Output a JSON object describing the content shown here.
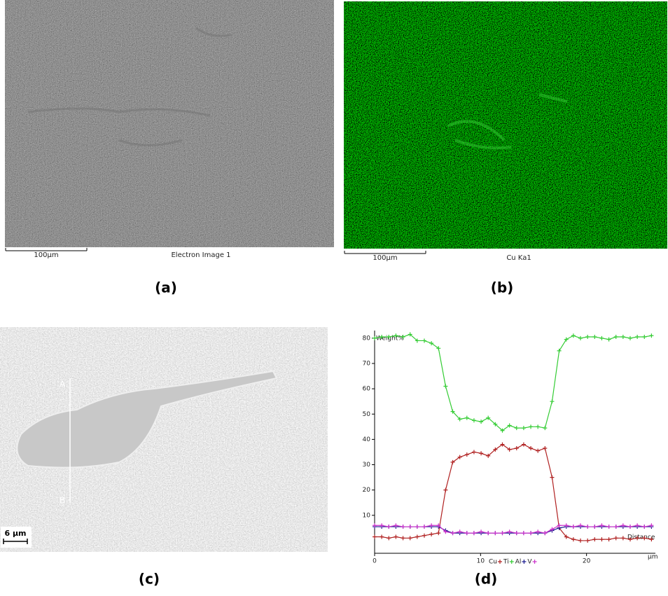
{
  "panels": {
    "a": {
      "scale_bar": "100µm",
      "caption": "Electron Image 1",
      "label": "(a)"
    },
    "b": {
      "scale_bar": "100µm",
      "caption": "Cu Ka1",
      "label": "(b)"
    },
    "c": {
      "point_a": "A",
      "point_b": "B",
      "scale_bar": "6 µm",
      "label": "(c)"
    },
    "d": {
      "label": "(d)"
    }
  },
  "chart_data": {
    "type": "line",
    "y_label": "Weight%",
    "x_label": "Distance",
    "x_unit": "µm",
    "x": [
      0,
      0.67,
      1.34,
      2.01,
      2.68,
      3.35,
      4.02,
      4.69,
      5.36,
      6.03,
      6.7,
      7.37,
      8.04,
      8.71,
      9.38,
      10.05,
      10.72,
      11.39,
      12.06,
      12.73,
      13.4,
      14.07,
      14.74,
      15.41,
      16.08,
      16.75,
      17.42,
      18.09,
      18.76,
      19.43,
      20.1,
      20.77,
      21.44,
      22.11,
      22.78,
      23.45,
      24.12,
      24.79,
      25.46,
      26.13
    ],
    "series": [
      {
        "name": "Cu",
        "color": "#b02020",
        "values": [
          1.5,
          1.5,
          1,
          1.5,
          1,
          1,
          1.5,
          2,
          2.5,
          3,
          20,
          31,
          33,
          34,
          35,
          34.5,
          33.5,
          36,
          38,
          36,
          36.5,
          38,
          36.5,
          35.5,
          36.5,
          25,
          5,
          1.5,
          0.5,
          0,
          0,
          0.5,
          0.5,
          0.5,
          1,
          1,
          0.5,
          1,
          1,
          0.5
        ]
      },
      {
        "name": "Ti",
        "color": "#33cc33",
        "values": [
          80,
          80.5,
          80.5,
          81,
          80.5,
          81.5,
          79,
          79,
          78,
          76,
          61,
          51,
          48,
          48.5,
          47.5,
          47,
          48.5,
          46,
          43.5,
          45.5,
          44.5,
          44.5,
          45,
          45,
          44.5,
          55,
          75,
          79.5,
          81,
          80,
          80.5,
          80.5,
          80,
          79.5,
          80.5,
          80.5,
          80,
          80.5,
          80.5,
          81
        ]
      },
      {
        "name": "Al",
        "color": "#1a1a90",
        "values": [
          5.5,
          5.5,
          5.5,
          5.5,
          5.5,
          5.5,
          5.5,
          5.5,
          5.5,
          5.5,
          4,
          3,
          3,
          3,
          3,
          3,
          3,
          3,
          3,
          3,
          3,
          3,
          3,
          3,
          3,
          4,
          5,
          5.5,
          5.5,
          5.5,
          5.5,
          5.5,
          5.5,
          5.5,
          5.5,
          5.5,
          5.5,
          5.5,
          5.5,
          5.5
        ]
      },
      {
        "name": "V",
        "color": "#cc33cc",
        "values": [
          6,
          6,
          5.5,
          6,
          5.5,
          5.5,
          5.5,
          5.5,
          6,
          6,
          3.5,
          3,
          3.5,
          3,
          3,
          3.5,
          3,
          3,
          3,
          3.5,
          3,
          3,
          3,
          3.5,
          3,
          4.5,
          6,
          6,
          5.5,
          6,
          5.5,
          5.5,
          6,
          5.5,
          5.5,
          6,
          5.5,
          6,
          5.5,
          6
        ]
      }
    ],
    "xlim": [
      0,
      26.5
    ],
    "ylim": [
      -5,
      83
    ],
    "xticks": [
      0,
      10,
      20
    ],
    "yticks": [
      10,
      20,
      30,
      40,
      50,
      60,
      70,
      80
    ]
  }
}
